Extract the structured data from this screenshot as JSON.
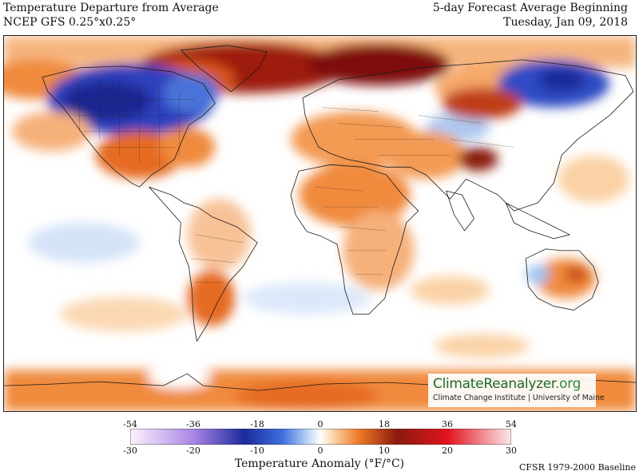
{
  "header": {
    "title": "Temperature Departure from Average",
    "model": "NCEP GFS 0.25°x0.25°",
    "forecast": "5-day Forecast Average Beginning",
    "date": "Tuesday, Jan 09, 2018"
  },
  "logo": {
    "name": "ClimateReanalyzer",
    "tld": ".org",
    "subtitle": "Climate Change Institute | University of Maine"
  },
  "colorbar": {
    "fahrenheit_ticks": [
      "-54",
      "-36",
      "-18",
      "0",
      "18",
      "36",
      "54"
    ],
    "celsius_ticks": [
      "-30",
      "-20",
      "-10",
      "0",
      "10",
      "20",
      "30"
    ],
    "label": "Temperature Anomaly (°F/°C)",
    "stops": [
      {
        "value": -30,
        "color": "#fdf3fc"
      },
      {
        "value": -20,
        "color": "#a985e6"
      },
      {
        "value": -12,
        "color": "#1c2a9a"
      },
      {
        "value": -6,
        "color": "#3d6fe0"
      },
      {
        "value": -2,
        "color": "#bcd6f6"
      },
      {
        "value": 0,
        "color": "#ffffff"
      },
      {
        "value": 2,
        "color": "#fbd2a6"
      },
      {
        "value": 6,
        "color": "#ef7a2a"
      },
      {
        "value": 12,
        "color": "#8a1a0c"
      },
      {
        "value": 20,
        "color": "#e2141f"
      },
      {
        "value": 30,
        "color": "#fde9ec"
      }
    ]
  },
  "baseline": "CFSR 1979-2000 Baseline"
}
